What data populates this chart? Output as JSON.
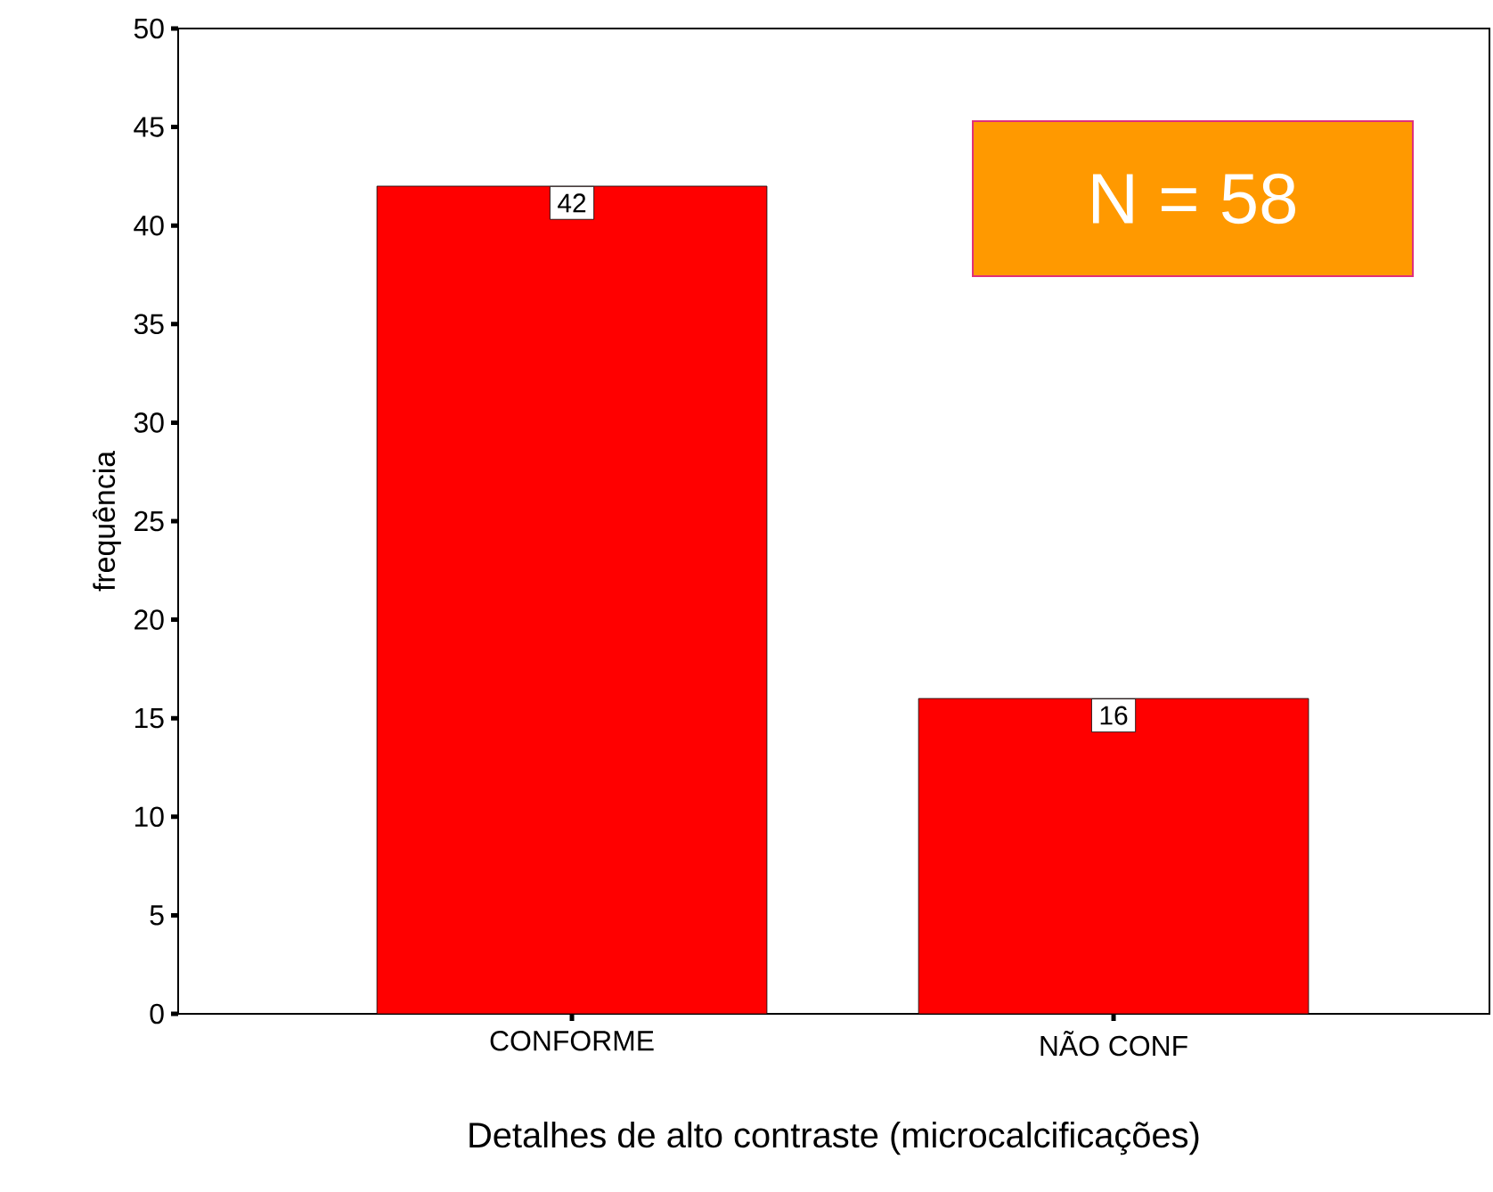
{
  "chart_data": {
    "type": "bar",
    "xlabel": "Detalhes de alto contraste (microcalcificações)",
    "ylabel": "frequência",
    "categories": [
      "CONFORME",
      "NÃO CONF"
    ],
    "values": [
      42,
      16
    ],
    "color": "#ff0000",
    "ylim": [
      0,
      50
    ],
    "yticks": [
      0,
      5,
      10,
      15,
      20,
      25,
      30,
      35,
      40,
      45,
      50
    ],
    "data_labels": true,
    "annotations": [
      "N = 58"
    ]
  }
}
